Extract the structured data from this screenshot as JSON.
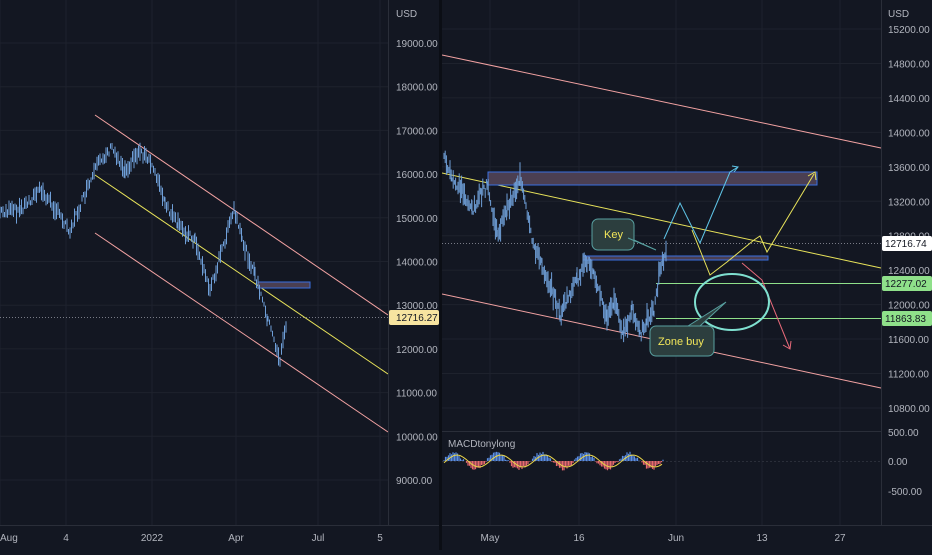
{
  "colors": {
    "background": "#131722",
    "grid": "#1e222d",
    "price_line": "#6f9fd8",
    "channel_pink": "#f2a2a2",
    "trend_yellow": "#e8e35a",
    "level_green": "#8fe08a",
    "zone_box": "#4b3f52",
    "zone_box_border": "#3a6fe0",
    "arrow_cyan": "#5fc5e8",
    "arrow_yellow": "#e8e35a",
    "arrow_pink": "#e86a7a",
    "note_fill": "#2c3e3e",
    "note_text": "#f2e65a",
    "circle": "#7fe0d0",
    "macd_pos": "#5b8fe6",
    "macd_neg": "#e86a70",
    "macd_line": "#e8d44a"
  },
  "left_chart": {
    "axis_unit": "USD",
    "y_ticks": [
      "19000.00",
      "18000.00",
      "17000.00",
      "16000.00",
      "15000.00",
      "14000.00",
      "13000.00",
      "12000.00",
      "11000.00",
      "10000.00",
      "9000.00"
    ],
    "x_ticks": [
      "Aug",
      "4",
      "2022",
      "Apr",
      "Jul",
      "5"
    ],
    "current_price_label": "12716.27"
  },
  "right_chart": {
    "axis_unit": "USD",
    "y_ticks": [
      "15200.00",
      "14800.00",
      "14400.00",
      "14000.00",
      "13600.00",
      "13200.00",
      "12800.00",
      "12400.00",
      "12000.00",
      "11600.00",
      "11200.00",
      "10800.00"
    ],
    "x_ticks": [
      "May",
      "16",
      "Jun",
      "13",
      "27"
    ],
    "labels": {
      "current_price": "12716.74",
      "level_1": "12277.02",
      "level_2": "11863.83"
    },
    "annotations": {
      "key": "Key",
      "zone_buy": "Zone buy"
    },
    "indicator": {
      "name": "MACDtonylong",
      "ticks": [
        "500.00",
        "0.00",
        "-500.00"
      ]
    }
  }
}
